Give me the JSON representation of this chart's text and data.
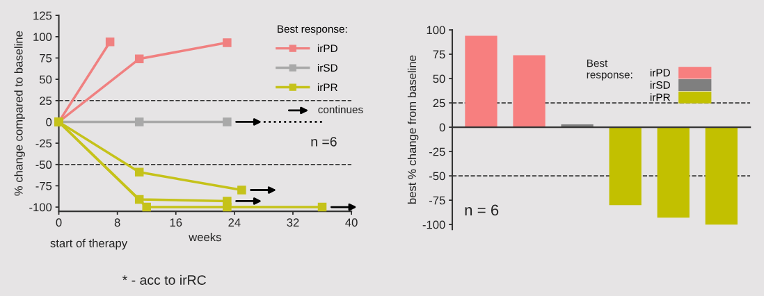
{
  "chart_data": [
    {
      "type": "line",
      "ylabel": "% change compared to baseline",
      "xlabel": "weeks",
      "legend_title": "Best response:",
      "legend": "top right",
      "marker": "square",
      "line_style": "solid",
      "grid": false,
      "xlim": [
        0,
        40
      ],
      "xticks": [
        0,
        8,
        16,
        24,
        32,
        40
      ],
      "ylim": [
        -105,
        125
      ],
      "yticks": [
        -100,
        -75,
        -50,
        -25,
        0,
        25,
        50,
        75,
        100,
        125
      ],
      "series": [
        {
          "name": "irPD",
          "color": "#f08080",
          "x": [
            0,
            7
          ],
          "values": [
            0,
            94
          ]
        },
        {
          "color": "#f08080",
          "x": [
            0,
            11,
            23
          ],
          "values": [
            0,
            74,
            93
          ]
        },
        {
          "name": "irSD",
          "color": "#a9a9a9",
          "x": [
            0,
            11,
            23
          ],
          "values": [
            0,
            0,
            0
          ]
        },
        {
          "name": "irPR",
          "color": "#c5c21a",
          "x": [
            0,
            11,
            25
          ],
          "values": [
            0,
            -59,
            -80
          ]
        },
        {
          "color": "#c5c21a",
          "x": [
            0,
            11,
            23
          ],
          "values": [
            0,
            -91,
            -93
          ]
        },
        {
          "color": "#c5c21a",
          "x": [
            0,
            12,
            23,
            36
          ],
          "values": [
            0,
            -100,
            -100,
            -100
          ]
        },
        {
          "color": "#000000",
          "x": [
            28,
            36
          ],
          "values": [
            0,
            0
          ],
          "marker": "none",
          "line_style": "dotted"
        }
      ],
      "ref_lines": [
        {
          "axis": "y",
          "value": 25,
          "color": "#333333",
          "line_style": "dashed"
        },
        {
          "axis": "y",
          "value": -50,
          "color": "#333333",
          "line_style": "dashed"
        }
      ],
      "annotations": [
        "start of therapy",
        "continues",
        "n =6",
        "* - acc to irRC"
      ]
    },
    {
      "type": "bar",
      "ylabel": "best % change from baseline",
      "legend_title": "Best\nresponse:",
      "legend": "top right",
      "grid": false,
      "tick_labels": "y",
      "categories": [
        null,
        null,
        null,
        null,
        null,
        null
      ],
      "ylim": [
        -105,
        100
      ],
      "yticks": [
        -100,
        -75,
        -50,
        -25,
        0,
        25,
        50,
        75,
        100
      ],
      "series": [
        {
          "name": "irPD",
          "color": "#f77f7f",
          "values": [
            94,
            74,
            null,
            null,
            null,
            null
          ]
        },
        {
          "name": "irSD",
          "color": "#7f7f7f",
          "values": [
            null,
            null,
            3,
            null,
            null,
            null
          ]
        },
        {
          "name": "irPR",
          "color": "#c2c000",
          "values": [
            null,
            null,
            null,
            -80,
            -93,
            -100
          ]
        }
      ],
      "ref_lines": [
        {
          "axis": "y",
          "value": 25,
          "color": "#333333",
          "line_style": "dashed"
        },
        {
          "axis": "y",
          "value": -50,
          "color": "#333333",
          "line_style": "dashed"
        }
      ],
      "annotations": [
        "n = 6"
      ]
    }
  ]
}
